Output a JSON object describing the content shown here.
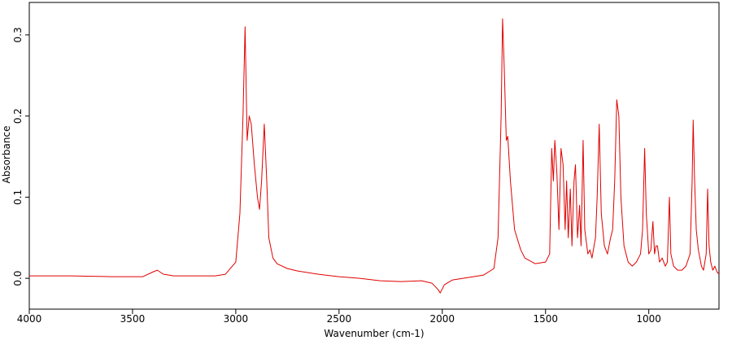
{
  "chart_data": {
    "type": "line",
    "x_label": "Wavenumber (cm-1)",
    "y_label": "Absorbance",
    "color": "#e00000",
    "xlim": [
      4000,
      660
    ],
    "ylim": [
      -0.038,
      0.34
    ],
    "xticks": [
      4000,
      3500,
      3000,
      2500,
      2000,
      1500,
      1000
    ],
    "yticks": [
      {
        "value": 0,
        "label": "0.0"
      },
      0.1,
      0.2,
      0.3
    ],
    "x": [
      4000,
      3800,
      3600,
      3450,
      3400,
      3380,
      3350,
      3300,
      3200,
      3100,
      3050,
      3000,
      2980,
      2965,
      2955,
      2945,
      2935,
      2925,
      2910,
      2895,
      2885,
      2875,
      2862,
      2850,
      2840,
      2820,
      2800,
      2750,
      2700,
      2600,
      2500,
      2400,
      2300,
      2200,
      2100,
      2050,
      2020,
      2010,
      1990,
      1950,
      1900,
      1850,
      1800,
      1750,
      1730,
      1715,
      1708,
      1700,
      1690,
      1683,
      1670,
      1650,
      1620,
      1600,
      1550,
      1500,
      1480,
      1470,
      1462,
      1455,
      1445,
      1435,
      1425,
      1415,
      1405,
      1398,
      1390,
      1380,
      1372,
      1362,
      1355,
      1345,
      1335,
      1328,
      1318,
      1310,
      1295,
      1285,
      1275,
      1265,
      1258,
      1250,
      1240,
      1230,
      1215,
      1200,
      1185,
      1175,
      1165,
      1155,
      1145,
      1135,
      1120,
      1100,
      1080,
      1060,
      1040,
      1030,
      1020,
      1012,
      1000,
      990,
      980,
      972,
      965,
      958,
      948,
      935,
      920,
      910,
      900,
      893,
      880,
      860,
      840,
      820,
      800,
      790,
      785,
      778,
      770,
      760,
      745,
      735,
      722,
      715,
      708,
      700,
      690,
      680,
      670,
      660
    ],
    "values": [
      0.003,
      0.003,
      0.002,
      0.002,
      0.008,
      0.01,
      0.005,
      0.003,
      0.003,
      0.003,
      0.005,
      0.02,
      0.08,
      0.2,
      0.31,
      0.17,
      0.2,
      0.19,
      0.14,
      0.1,
      0.085,
      0.12,
      0.19,
      0.12,
      0.05,
      0.025,
      0.018,
      0.012,
      0.009,
      0.005,
      0.002,
      0.0,
      -0.003,
      -0.004,
      -0.003,
      -0.006,
      -0.014,
      -0.018,
      -0.008,
      -0.002,
      0.0,
      0.002,
      0.004,
      0.012,
      0.05,
      0.2,
      0.32,
      0.26,
      0.17,
      0.175,
      0.12,
      0.06,
      0.035,
      0.025,
      0.018,
      0.02,
      0.03,
      0.16,
      0.12,
      0.17,
      0.13,
      0.06,
      0.16,
      0.14,
      0.06,
      0.12,
      0.05,
      0.11,
      0.04,
      0.12,
      0.14,
      0.05,
      0.09,
      0.04,
      0.17,
      0.06,
      0.03,
      0.035,
      0.025,
      0.04,
      0.05,
      0.1,
      0.19,
      0.08,
      0.04,
      0.03,
      0.05,
      0.06,
      0.12,
      0.22,
      0.2,
      0.1,
      0.04,
      0.02,
      0.015,
      0.02,
      0.03,
      0.06,
      0.16,
      0.08,
      0.03,
      0.035,
      0.07,
      0.03,
      0.04,
      0.04,
      0.02,
      0.025,
      0.015,
      0.02,
      0.1,
      0.03,
      0.015,
      0.01,
      0.01,
      0.015,
      0.03,
      0.12,
      0.195,
      0.12,
      0.06,
      0.035,
      0.015,
      0.01,
      0.03,
      0.11,
      0.04,
      0.02,
      0.01,
      0.015,
      0.008,
      0.005
    ]
  }
}
